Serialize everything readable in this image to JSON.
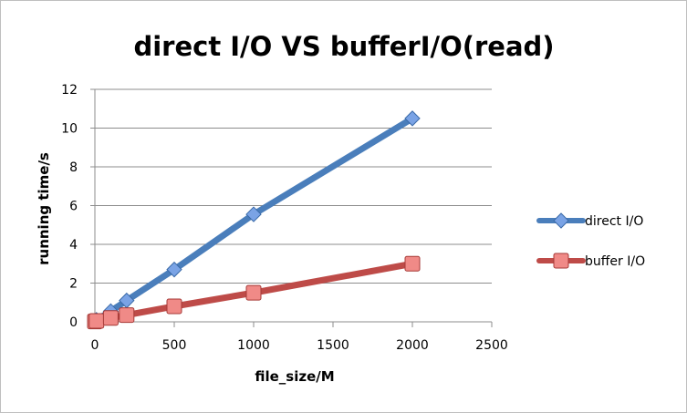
{
  "chart_data": {
    "type": "line",
    "title": "direct I/O VS bufferI/O(read)",
    "xlabel": "file_size/M",
    "ylabel": "running time/s",
    "xlim": [
      0,
      2500
    ],
    "ylim": [
      0,
      12
    ],
    "x_ticks": [
      "0",
      "500",
      "1000",
      "1500",
      "2000",
      "2500"
    ],
    "y_ticks": [
      "0",
      "2",
      "4",
      "6",
      "8",
      "10",
      "12"
    ],
    "grid": "horizontal",
    "legend_position": "right",
    "series": [
      {
        "name": "direct I/O",
        "color": "#4a7ebb",
        "marker": "diamond",
        "points": [
          [
            0,
            0.05
          ],
          [
            10,
            0.1
          ],
          [
            100,
            0.55
          ],
          [
            200,
            1.1
          ],
          [
            500,
            2.7
          ],
          [
            1000,
            5.55
          ],
          [
            2000,
            10.5
          ]
        ]
      },
      {
        "name": "buffer I/O",
        "color": "#be4b48",
        "marker": "square",
        "points": [
          [
            0,
            0.02
          ],
          [
            10,
            0.05
          ],
          [
            100,
            0.2
          ],
          [
            200,
            0.35
          ],
          [
            500,
            0.8
          ],
          [
            1000,
            1.5
          ],
          [
            2000,
            3.0
          ]
        ]
      }
    ]
  }
}
